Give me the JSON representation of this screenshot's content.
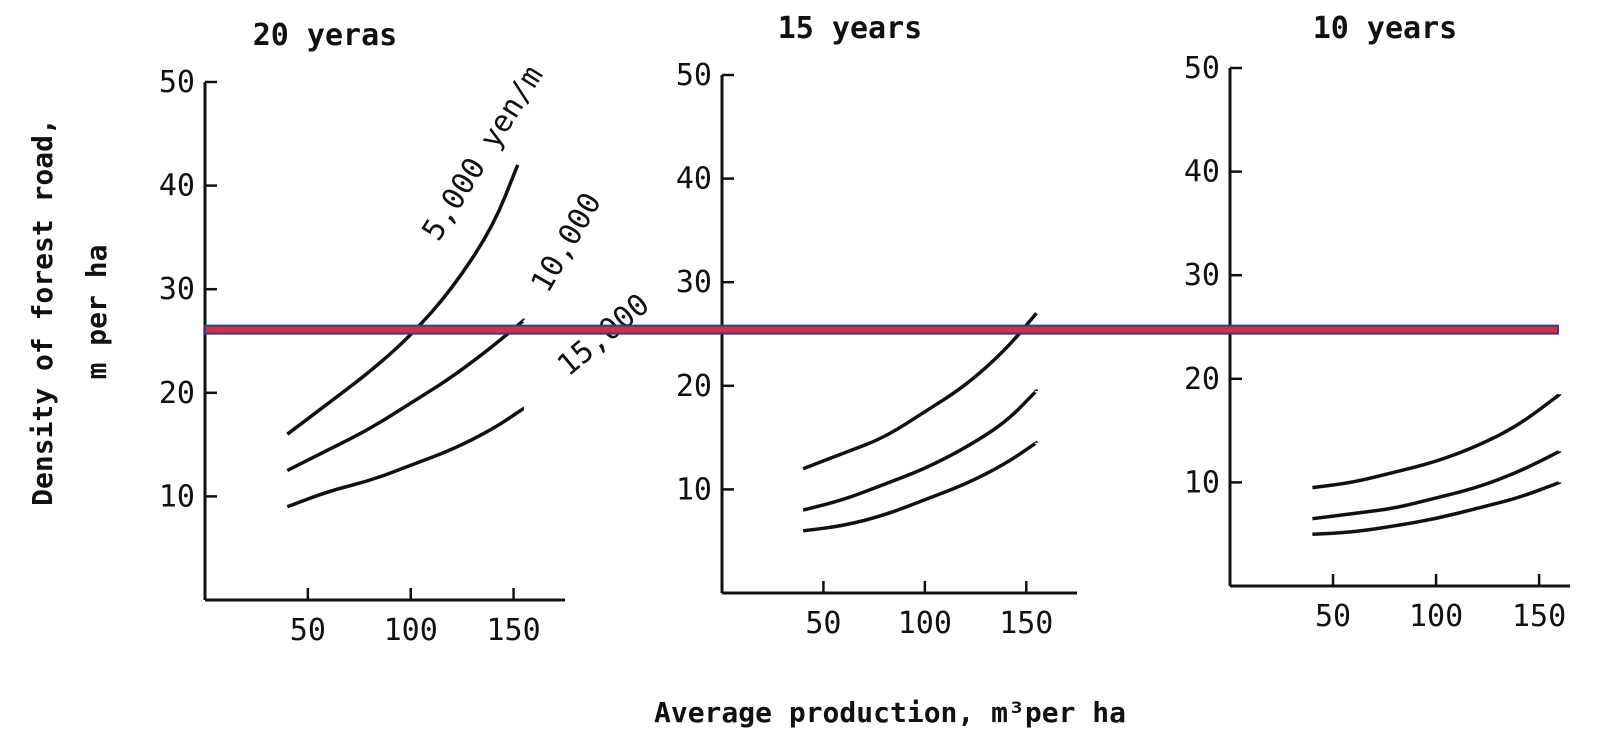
{
  "ylabel_line1": "Density of forest road,",
  "ylabel_line2": "m per ha",
  "xlabel": "Average production, m³per ha",
  "reference_line": {
    "y": 26,
    "color": "#d7303c",
    "border": "#2b3f99"
  },
  "chart_data": [
    {
      "type": "line",
      "title": "20 yeras",
      "x_ticks": [
        50,
        100,
        150
      ],
      "y_ticks": [
        10,
        20,
        30,
        40,
        50
      ],
      "xlim": [
        0,
        175
      ],
      "ylim": [
        0,
        50
      ],
      "curve_labels": [
        "5,000 yen/m",
        "10,000",
        "15,000"
      ],
      "series": [
        {
          "name": "5,000 yen/m",
          "x": [
            40,
            60,
            80,
            100,
            120,
            140,
            152
          ],
          "y": [
            16,
            19,
            22,
            25.5,
            30,
            36,
            42
          ]
        },
        {
          "name": "10,000",
          "x": [
            40,
            60,
            80,
            100,
            120,
            140,
            155
          ],
          "y": [
            12.5,
            14.5,
            16.5,
            19,
            21.5,
            24.5,
            27
          ]
        },
        {
          "name": "15,000",
          "x": [
            40,
            60,
            80,
            100,
            120,
            140,
            155
          ],
          "y": [
            9,
            10.5,
            11.5,
            13,
            14.5,
            16.5,
            18.5
          ]
        }
      ]
    },
    {
      "type": "line",
      "title": "15 years",
      "x_ticks": [
        50,
        100,
        150
      ],
      "y_ticks": [
        10,
        20,
        30,
        40,
        50
      ],
      "xlim": [
        0,
        175
      ],
      "ylim": [
        0,
        50
      ],
      "series": [
        {
          "x": [
            40,
            60,
            80,
            100,
            120,
            140,
            155
          ],
          "y": [
            12,
            13.5,
            15,
            17.5,
            20,
            23.5,
            27
          ]
        },
        {
          "x": [
            40,
            60,
            80,
            100,
            120,
            140,
            155
          ],
          "y": [
            8,
            9,
            10.5,
            12,
            14,
            16.5,
            19.5
          ]
        },
        {
          "x": [
            40,
            60,
            80,
            100,
            120,
            140,
            155
          ],
          "y": [
            6,
            6.5,
            7.5,
            9,
            10.5,
            12.5,
            14.5
          ]
        }
      ]
    },
    {
      "type": "line",
      "title": "10 years",
      "x_ticks": [
        50,
        100,
        150
      ],
      "y_ticks": [
        10,
        20,
        30,
        40,
        50
      ],
      "xlim": [
        0,
        165
      ],
      "ylim": [
        0,
        50
      ],
      "series": [
        {
          "x": [
            40,
            60,
            80,
            100,
            120,
            140,
            160
          ],
          "y": [
            9.5,
            10,
            11,
            12,
            13.5,
            15.5,
            18.5
          ]
        },
        {
          "x": [
            40,
            60,
            80,
            100,
            120,
            140,
            160
          ],
          "y": [
            6.5,
            7,
            7.5,
            8.5,
            9.5,
            11,
            13
          ]
        },
        {
          "x": [
            40,
            60,
            80,
            100,
            120,
            140,
            160
          ],
          "y": [
            5,
            5.2,
            5.8,
            6.5,
            7.5,
            8.5,
            10
          ]
        }
      ]
    }
  ]
}
